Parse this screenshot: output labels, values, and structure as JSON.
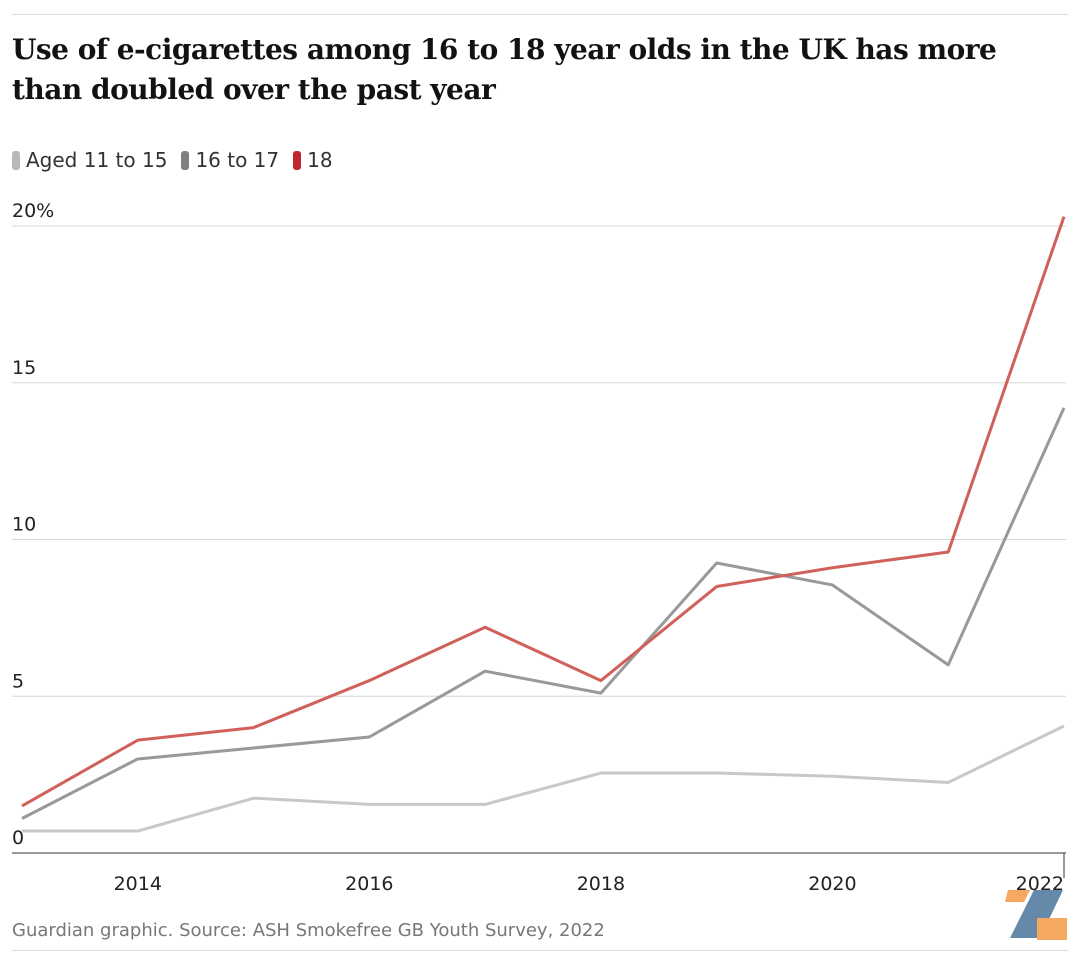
{
  "title": "Use of e-cigarettes among 16 to 18 year olds in the UK has more than doubled over the past year",
  "source": "Guardian graphic. Source: ASH Smokefree GB Youth Survey, 2022",
  "chart_data": {
    "type": "line",
    "title": "Use of e-cigarettes among 16 to 18 year olds in the UK has more than doubled over the past year",
    "xlabel": "",
    "ylabel": "",
    "x": [
      2013,
      2014,
      2015,
      2016,
      2017,
      2018,
      2019,
      2020,
      2021,
      2022
    ],
    "xlim": [
      2013,
      2022
    ],
    "ylim": [
      0,
      20
    ],
    "yticks": [
      0,
      5,
      10,
      15,
      20
    ],
    "ytick_labels": [
      "0",
      "5",
      "10",
      "15",
      "20%"
    ],
    "xticks": [
      2014,
      2016,
      2018,
      2020,
      2022
    ],
    "xtick_labels": [
      "2014",
      "2016",
      "2018",
      "2020",
      "2022"
    ],
    "grid": true,
    "legend_position": "top-left",
    "series": [
      {
        "name": "Aged 11 to 15",
        "color": "#c8c8c8",
        "values": [
          0.7,
          0.7,
          1.75,
          1.55,
          1.55,
          2.55,
          2.55,
          2.45,
          2.25,
          4.05
        ]
      },
      {
        "name": "16 to 17",
        "color": "#999999",
        "values": [
          1.1,
          3.0,
          3.35,
          3.7,
          5.8,
          5.1,
          9.25,
          8.55,
          6.0,
          14.2
        ]
      },
      {
        "name": "18",
        "color": "#d0605a",
        "values": [
          1.5,
          3.6,
          4.0,
          5.5,
          7.2,
          5.5,
          8.5,
          9.1,
          9.6,
          20.3
        ]
      }
    ]
  },
  "legend_colors": [
    "#b8b8b8",
    "#7f7f7f",
    "#c0272d"
  ]
}
